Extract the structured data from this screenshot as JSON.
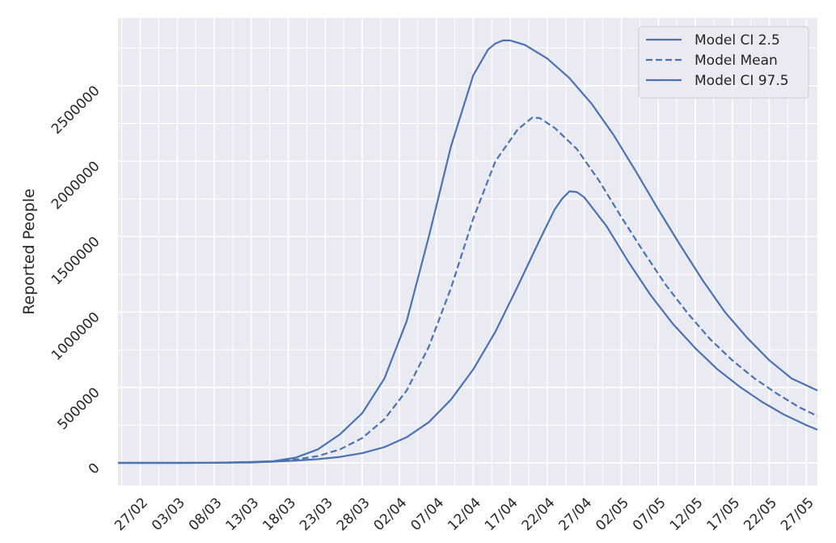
{
  "chart_data": {
    "type": "line",
    "title": "",
    "xlabel": "",
    "ylabel": "Reported People",
    "x_ticks": [
      "27/02",
      "03/03",
      "08/03",
      "13/03",
      "18/03",
      "23/03",
      "28/03",
      "02/04",
      "07/04",
      "12/04",
      "17/04",
      "22/04",
      "27/04",
      "02/05",
      "07/05",
      "12/05",
      "17/05",
      "22/05",
      "27/05"
    ],
    "y_ticks": [
      "0",
      "500000",
      "1000000",
      "1500000",
      "2000000",
      "2500000"
    ],
    "ylim": [
      -150000,
      2950000
    ],
    "xlim_days": [
      -3,
      91.5
    ],
    "x_origin_label": "27/02",
    "grid": true,
    "legend_position": "top-right",
    "colors": {
      "series": "#4c72b0",
      "background": "#eaeaf2",
      "grid": "#ffffff"
    },
    "series": [
      {
        "name": "Model CI 2.5",
        "style": "solid",
        "points": [
          [
            -3,
            0
          ],
          [
            0,
            0
          ],
          [
            5,
            100
          ],
          [
            10,
            500
          ],
          [
            15,
            3000
          ],
          [
            18,
            8000
          ],
          [
            21,
            15000
          ],
          [
            24,
            25000
          ],
          [
            27,
            40000
          ],
          [
            30,
            65000
          ],
          [
            33,
            105000
          ],
          [
            36,
            170000
          ],
          [
            39,
            270000
          ],
          [
            42,
            420000
          ],
          [
            45,
            620000
          ],
          [
            48,
            870000
          ],
          [
            51,
            1170000
          ],
          [
            54,
            1480000
          ],
          [
            56,
            1680000
          ],
          [
            57,
            1750000
          ],
          [
            58,
            1800000
          ],
          [
            59,
            1795000
          ],
          [
            60,
            1760000
          ],
          [
            63,
            1570000
          ],
          [
            66,
            1330000
          ],
          [
            69,
            1110000
          ],
          [
            72,
            920000
          ],
          [
            75,
            760000
          ],
          [
            78,
            620000
          ],
          [
            81,
            505000
          ],
          [
            84,
            405000
          ],
          [
            87,
            320000
          ],
          [
            90,
            250000
          ],
          [
            91.5,
            220000
          ]
        ]
      },
      {
        "name": "Model Mean",
        "style": "dashed",
        "points": [
          [
            -3,
            0
          ],
          [
            0,
            0
          ],
          [
            5,
            150
          ],
          [
            10,
            900
          ],
          [
            15,
            5000
          ],
          [
            18,
            10000
          ],
          [
            21,
            22000
          ],
          [
            24,
            45000
          ],
          [
            27,
            90000
          ],
          [
            30,
            165000
          ],
          [
            33,
            290000
          ],
          [
            36,
            480000
          ],
          [
            39,
            770000
          ],
          [
            42,
            1160000
          ],
          [
            45,
            1620000
          ],
          [
            48,
            2000000
          ],
          [
            51,
            2210000
          ],
          [
            53,
            2290000
          ],
          [
            54,
            2285000
          ],
          [
            56,
            2220000
          ],
          [
            59,
            2080000
          ],
          [
            62,
            1870000
          ],
          [
            65,
            1630000
          ],
          [
            68,
            1400000
          ],
          [
            71,
            1180000
          ],
          [
            74,
            990000
          ],
          [
            77,
            820000
          ],
          [
            80,
            680000
          ],
          [
            83,
            560000
          ],
          [
            86,
            460000
          ],
          [
            89,
            370000
          ],
          [
            91.5,
            310000
          ]
        ]
      },
      {
        "name": "Model CI 97.5",
        "style": "solid",
        "points": [
          [
            -3,
            0
          ],
          [
            0,
            0
          ],
          [
            5,
            300
          ],
          [
            10,
            1500
          ],
          [
            15,
            6000
          ],
          [
            18,
            12000
          ],
          [
            21,
            35000
          ],
          [
            24,
            90000
          ],
          [
            27,
            190000
          ],
          [
            30,
            330000
          ],
          [
            33,
            560000
          ],
          [
            36,
            940000
          ],
          [
            39,
            1500000
          ],
          [
            42,
            2100000
          ],
          [
            45,
            2570000
          ],
          [
            47,
            2740000
          ],
          [
            48,
            2780000
          ],
          [
            49,
            2800000
          ],
          [
            50,
            2800000
          ],
          [
            52,
            2770000
          ],
          [
            55,
            2680000
          ],
          [
            58,
            2550000
          ],
          [
            61,
            2380000
          ],
          [
            64,
            2170000
          ],
          [
            67,
            1930000
          ],
          [
            70,
            1680000
          ],
          [
            73,
            1440000
          ],
          [
            76,
            1210000
          ],
          [
            79,
            1000000
          ],
          [
            82,
            830000
          ],
          [
            85,
            680000
          ],
          [
            88,
            560000
          ],
          [
            91.5,
            480000
          ]
        ]
      }
    ]
  }
}
